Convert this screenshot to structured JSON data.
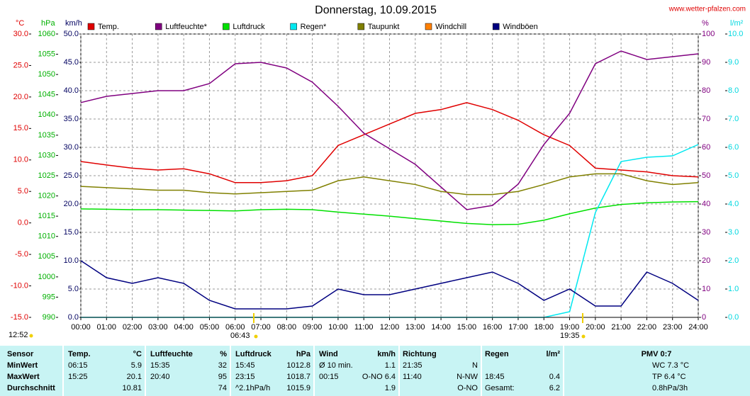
{
  "chart_data": {
    "type": "line",
    "title": "Donnerstag, 10.09.2015",
    "source": "www.wetter-pfalzen.com",
    "xlim": [
      0,
      24
    ],
    "xticks": [
      {
        "value": 0,
        "label": "00:00"
      },
      {
        "value": 1,
        "label": "01:00"
      },
      {
        "value": 2,
        "label": "02:00"
      },
      {
        "value": 3,
        "label": "03:00"
      },
      {
        "value": 4,
        "label": "04:00"
      },
      {
        "value": 5,
        "label": "05:00"
      },
      {
        "value": 6,
        "label": "06:00"
      },
      {
        "value": 7,
        "label": "07:00"
      },
      {
        "value": 8,
        "label": "08:00"
      },
      {
        "value": 9,
        "label": "09:00"
      },
      {
        "value": 10,
        "label": "10:00"
      },
      {
        "value": 11,
        "label": "11:00"
      },
      {
        "value": 12,
        "label": "12:00"
      },
      {
        "value": 13,
        "label": "13:00"
      },
      {
        "value": 14,
        "label": "14:00"
      },
      {
        "value": 15,
        "label": "15:00"
      },
      {
        "value": 16,
        "label": "16:00"
      },
      {
        "value": 17,
        "label": "17:00"
      },
      {
        "value": 18,
        "label": "18:00"
      },
      {
        "value": 19,
        "label": "19:00"
      },
      {
        "value": 20,
        "label": "20:00"
      },
      {
        "value": 21,
        "label": "21:00"
      },
      {
        "value": 22,
        "label": "22:00"
      },
      {
        "value": 23,
        "label": "23:00"
      },
      {
        "value": 24,
        "label": "24:00"
      }
    ],
    "grid": true,
    "axes": [
      {
        "unit": "°C",
        "side": "left",
        "color": "#e00000",
        "lim": [
          -15,
          30
        ],
        "ticks": [
          {
            "value": -15,
            "label": "-15.0"
          },
          {
            "value": -10,
            "label": "-10.0"
          },
          {
            "value": -5,
            "label": "-5.0"
          },
          {
            "value": 0,
            "label": "0.0"
          },
          {
            "value": 5,
            "label": "5.0"
          },
          {
            "value": 10,
            "label": "10.0"
          },
          {
            "value": 15,
            "label": "15.0"
          },
          {
            "value": 20,
            "label": "20.0"
          },
          {
            "value": 25,
            "label": "25.0"
          },
          {
            "value": 30,
            "label": "30.0"
          }
        ]
      },
      {
        "unit": "hPa",
        "side": "left",
        "color": "#00b000",
        "lim": [
          990,
          1060
        ],
        "ticks": [
          990,
          995,
          1000,
          1005,
          1010,
          1015,
          1020,
          1025,
          1030,
          1035,
          1040,
          1045,
          1050,
          1055,
          1060
        ]
      },
      {
        "unit": "km/h",
        "side": "left",
        "color": "#000060",
        "lim": [
          0,
          50
        ],
        "ticks": [
          {
            "value": 0,
            "label": "0.0"
          },
          {
            "value": 5,
            "label": "5.0"
          },
          {
            "value": 10,
            "label": "10.0"
          },
          {
            "value": 15,
            "label": "15.0"
          },
          {
            "value": 20,
            "label": "20.0"
          },
          {
            "value": 25,
            "label": "25.0"
          },
          {
            "value": 30,
            "label": "30.0"
          },
          {
            "value": 35,
            "label": "35.0"
          },
          {
            "value": 40,
            "label": "40.0"
          },
          {
            "value": 45,
            "label": "45.0"
          },
          {
            "value": 50,
            "label": "50.0"
          }
        ]
      },
      {
        "unit": "%",
        "side": "right",
        "color": "#800080",
        "lim": [
          0,
          100
        ],
        "ticks": [
          0,
          10,
          20,
          30,
          40,
          50,
          60,
          70,
          80,
          90,
          100
        ]
      },
      {
        "unit": "l/m²",
        "side": "right",
        "color": "#00d8e0",
        "lim": [
          0,
          10
        ],
        "ticks": [
          {
            "value": 0,
            "label": "0.0"
          },
          {
            "value": 1,
            "label": "1.0"
          },
          {
            "value": 2,
            "label": "2.0"
          },
          {
            "value": 3,
            "label": "3.0"
          },
          {
            "value": 4,
            "label": "4.0"
          },
          {
            "value": 5,
            "label": "5.0"
          },
          {
            "value": 6,
            "label": "6.0"
          },
          {
            "value": 7,
            "label": "7.0"
          },
          {
            "value": 8,
            "label": "8.0"
          },
          {
            "value": 9,
            "label": "9.0"
          },
          {
            "value": 10,
            "label": "10.0"
          }
        ]
      }
    ],
    "x": [
      0,
      1,
      2,
      3,
      4,
      5,
      6,
      7,
      8,
      9,
      10,
      11,
      12,
      13,
      14,
      15,
      16,
      17,
      18,
      19,
      20,
      21,
      22,
      23,
      24
    ],
    "series": [
      {
        "name": "Temp.",
        "color": "#e00000",
        "axis": 0,
        "values": [
          9.75,
          9.2,
          8.7,
          8.4,
          8.6,
          7.8,
          6.4,
          6.4,
          6.7,
          7.5,
          12.3,
          14,
          15.7,
          17.4,
          18,
          19.1,
          18,
          16.3,
          14,
          12.3,
          8.7,
          8.4,
          8.1,
          7.5,
          7.3
        ]
      },
      {
        "name": "Luftfeuchte*",
        "color": "#800080",
        "axis": 3,
        "values": [
          75.8,
          78,
          79,
          80,
          80,
          82.5,
          89.5,
          90,
          88,
          83,
          74.5,
          65,
          59.5,
          54,
          46,
          38,
          39.5,
          47,
          61,
          72,
          89.5,
          94,
          91,
          92,
          93
        ]
      },
      {
        "name": "Luftdruck",
        "color": "#00e000",
        "axis": 1,
        "values": [
          1016.8,
          1016.7,
          1016.6,
          1016.6,
          1016.5,
          1016.4,
          1016.3,
          1016.6,
          1016.7,
          1016.6,
          1016,
          1015.5,
          1015,
          1014.4,
          1013.8,
          1013.2,
          1012.9,
          1013,
          1014,
          1015.6,
          1017,
          1017.9,
          1018.3,
          1018.5,
          1018.6
        ]
      },
      {
        "name": "Regen*",
        "color": "#00e8f0",
        "axis": 4,
        "values": [
          0,
          0,
          0,
          0,
          0,
          0,
          0,
          0,
          0,
          0,
          0,
          0,
          0,
          0,
          0,
          0,
          0,
          0,
          0,
          0.2,
          3.7,
          5.5,
          5.65,
          5.7,
          6.1
        ]
      },
      {
        "name": "Taupunkt",
        "color": "#808000",
        "axis": 0,
        "values": [
          5.8,
          5.6,
          5.4,
          5.2,
          5.2,
          4.8,
          4.6,
          4.8,
          5,
          5.2,
          6.7,
          7.3,
          6.7,
          6.1,
          5,
          4.5,
          4.5,
          5,
          6.1,
          7.3,
          7.8,
          7.8,
          6.7,
          6.1,
          6.4
        ]
      },
      {
        "name": "Windchill",
        "color": "#ff8000",
        "axis": 0,
        "values": [
          null,
          null,
          null,
          null,
          null,
          null,
          null,
          null,
          null,
          null,
          null,
          null,
          null,
          null,
          null,
          null,
          null,
          null,
          null,
          null,
          null,
          null,
          null,
          null,
          null
        ]
      },
      {
        "name": "Windböen",
        "color": "#000080",
        "axis": 2,
        "values": [
          10,
          7,
          6,
          7,
          6,
          3,
          1.5,
          1.5,
          1.5,
          2,
          5,
          4,
          4,
          5,
          6,
          7,
          8,
          6,
          3,
          5,
          2,
          2,
          8,
          6,
          3
        ]
      }
    ],
    "annotations": [
      "12:52",
      "06:43",
      "19:35"
    ]
  },
  "table": {
    "sensor": "Sensor",
    "columns": [
      {
        "name": "Temp.",
        "unit": "°C"
      },
      {
        "name": "Luftfeuchte",
        "unit": "%"
      },
      {
        "name": "Luftdruck",
        "unit": "hPa"
      },
      {
        "name": "Wind",
        "unit": "km/h"
      },
      {
        "name": "Richtung"
      },
      {
        "name": "Regen",
        "unit": "l/m²"
      },
      {
        "name": "PMV 0:7"
      }
    ],
    "rows": [
      {
        "label": "MinWert",
        "cells": [
          [
            "06:15",
            "5.9"
          ],
          [
            "15:35",
            "32"
          ],
          [
            "15:45",
            "1012.8"
          ],
          [
            "Ø 10 min.",
            "1.1"
          ],
          [
            "21:35",
            "N"
          ],
          null,
          [
            "WC 7.3 °C"
          ]
        ]
      },
      {
        "label": "MaxWert",
        "cells": [
          [
            "15:25",
            "20.1"
          ],
          [
            "20:40",
            "95"
          ],
          [
            "23:15",
            "1018.7"
          ],
          [
            "00:15",
            "O-NO 6.4"
          ],
          [
            "11:40",
            "N-NW"
          ],
          [
            "18:45",
            "0.4"
          ],
          [
            "TP 6.4 °C"
          ]
        ]
      },
      {
        "label": "Durchschnitt",
        "cells": [
          [
            "10.81"
          ],
          [
            "74"
          ],
          [
            "^2.1hPa/h",
            "1015.9"
          ],
          [
            "1.9"
          ],
          [
            "O-NO"
          ],
          [
            "Gesamt:",
            "6.2"
          ],
          [
            "0.8hPa/3h"
          ]
        ]
      }
    ]
  }
}
